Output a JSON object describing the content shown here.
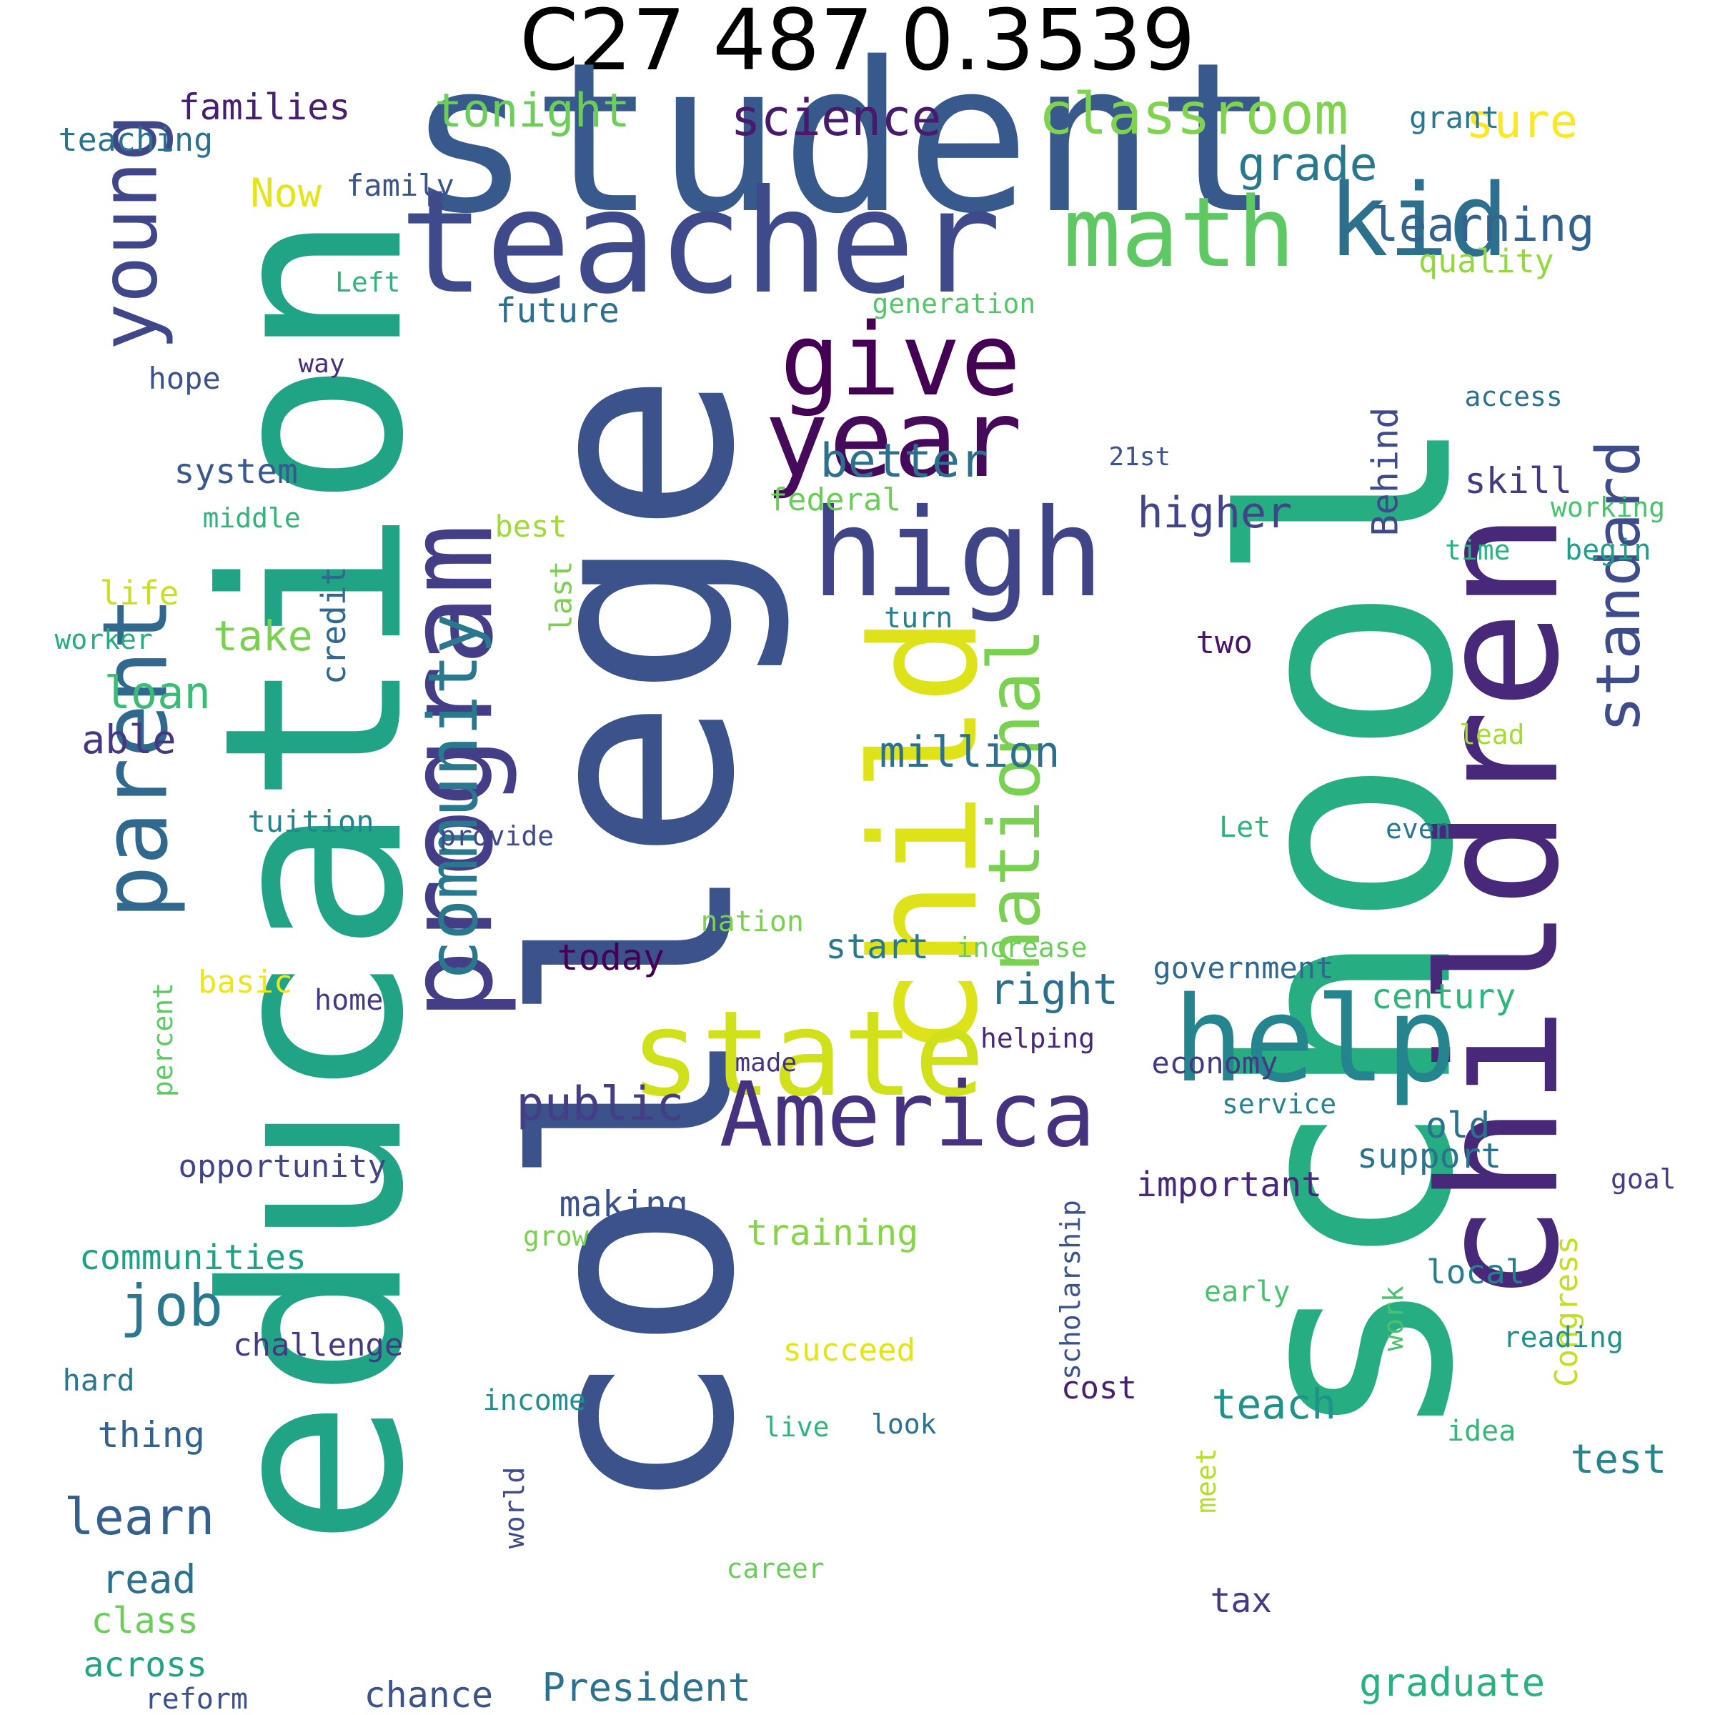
{
  "title": "C27 487 0.3539",
  "words": [
    {
      "text": "school",
      "color": "#26AD81"
    },
    {
      "text": "college",
      "color": "#3B528B"
    },
    {
      "text": "education",
      "color": "#21A386"
    },
    {
      "text": "student",
      "color": "#38598C"
    },
    {
      "text": "children",
      "color": "#482878"
    },
    {
      "text": "child",
      "color": "#DDE318"
    },
    {
      "text": "teacher",
      "color": "#3E4A89"
    },
    {
      "text": "program",
      "color": "#433E85"
    },
    {
      "text": "state",
      "color": "#D0E11C"
    },
    {
      "text": "America",
      "color": "#46327E"
    },
    {
      "text": "help",
      "color": "#25858E"
    },
    {
      "text": "high",
      "color": "#404588"
    },
    {
      "text": "year",
      "color": "#450B5A"
    },
    {
      "text": "give",
      "color": "#440154"
    },
    {
      "text": "kid",
      "color": "#2D708E"
    },
    {
      "text": "math",
      "color": "#5EC962"
    },
    {
      "text": "parent",
      "color": "#31688E"
    },
    {
      "text": "young",
      "color": "#3F4788"
    },
    {
      "text": "community",
      "color": "#2A788E"
    },
    {
      "text": "national",
      "color": "#7AD151"
    },
    {
      "text": "standard",
      "color": "#3E4C8A"
    },
    {
      "text": "classroom",
      "color": "#7FD34E"
    },
    {
      "text": "science",
      "color": "#481A6C"
    },
    {
      "text": "tonight",
      "color": "#6CCD5A"
    },
    {
      "text": "sure",
      "color": "#FDE725"
    },
    {
      "text": "grade",
      "color": "#2A788E"
    },
    {
      "text": "learning",
      "color": "#33638D"
    },
    {
      "text": "quality",
      "color": "#93D741"
    },
    {
      "text": "families",
      "color": "#481F70"
    },
    {
      "text": "teaching",
      "color": "#2C728E"
    },
    {
      "text": "Now",
      "color": "#E5E419"
    },
    {
      "text": "family",
      "color": "#3A548C"
    },
    {
      "text": "Left",
      "color": "#2FB47C"
    },
    {
      "text": "grant",
      "color": "#2A778E"
    },
    {
      "text": "future",
      "color": "#2C718E"
    },
    {
      "text": "generation",
      "color": "#54C568"
    },
    {
      "text": "hope",
      "color": "#3B528B"
    },
    {
      "text": "way",
      "color": "#472D7B"
    },
    {
      "text": "access",
      "color": "#2C728E"
    },
    {
      "text": "better",
      "color": "#2D708E"
    },
    {
      "text": "system",
      "color": "#38598C"
    },
    {
      "text": "21st",
      "color": "#3B528B"
    },
    {
      "text": "Behind",
      "color": "#3E4A89"
    },
    {
      "text": "higher",
      "color": "#414487"
    },
    {
      "text": "skill",
      "color": "#443A83"
    },
    {
      "text": "working",
      "color": "#4AC16D"
    },
    {
      "text": "middle",
      "color": "#2FB47C"
    },
    {
      "text": "federal",
      "color": "#6CCD5A"
    },
    {
      "text": "best",
      "color": "#A0DA39"
    },
    {
      "text": "time",
      "color": "#2BB07F"
    },
    {
      "text": "begin",
      "color": "#1F9E89"
    },
    {
      "text": "life",
      "color": "#C8E020"
    },
    {
      "text": "take",
      "color": "#7AD151"
    },
    {
      "text": "last",
      "color": "#7AD151"
    },
    {
      "text": "turn",
      "color": "#27808E"
    },
    {
      "text": "worker",
      "color": "#26AD81"
    },
    {
      "text": "credit",
      "color": "#31688E"
    },
    {
      "text": "two",
      "color": "#481467"
    },
    {
      "text": "loan",
      "color": "#3BBB75"
    },
    {
      "text": "able",
      "color": "#453781"
    },
    {
      "text": "million",
      "color": "#2D708E"
    },
    {
      "text": "lead",
      "color": "#A5DB36"
    },
    {
      "text": "tuition",
      "color": "#25848E"
    },
    {
      "text": "provide",
      "color": "#3E4A89"
    },
    {
      "text": "Let",
      "color": "#2EB37C"
    },
    {
      "text": "even",
      "color": "#2A788E"
    },
    {
      "text": "nation",
      "color": "#7AD151"
    },
    {
      "text": "start",
      "color": "#2A788E"
    },
    {
      "text": "increase",
      "color": "#6CCD5A"
    },
    {
      "text": "today",
      "color": "#440154"
    },
    {
      "text": "government",
      "color": "#31688E"
    },
    {
      "text": "basic",
      "color": "#EFE51C"
    },
    {
      "text": "right",
      "color": "#2D708E"
    },
    {
      "text": "century",
      "color": "#2FB47C"
    },
    {
      "text": "home",
      "color": "#443A83"
    },
    {
      "text": "percent",
      "color": "#5EC962"
    },
    {
      "text": "helping",
      "color": "#482878"
    },
    {
      "text": "made",
      "color": "#46327E"
    },
    {
      "text": "economy",
      "color": "#443983"
    },
    {
      "text": "public",
      "color": "#433E85"
    },
    {
      "text": "service",
      "color": "#26828E"
    },
    {
      "text": "old",
      "color": "#2D708E"
    },
    {
      "text": "goal",
      "color": "#433E85"
    },
    {
      "text": "opportunity",
      "color": "#414487"
    },
    {
      "text": "support",
      "color": "#2C728E"
    },
    {
      "text": "important",
      "color": "#482878"
    },
    {
      "text": "making",
      "color": "#3B528B"
    },
    {
      "text": "scholarship",
      "color": "#3B528B"
    },
    {
      "text": "communities",
      "color": "#1FA187"
    },
    {
      "text": "training",
      "color": "#86D549"
    },
    {
      "text": "grow",
      "color": "#7AD151"
    },
    {
      "text": "Congress",
      "color": "#C2DF23"
    },
    {
      "text": "local",
      "color": "#287D8E"
    },
    {
      "text": "early",
      "color": "#4AC16D"
    },
    {
      "text": "work",
      "color": "#4AC16D"
    },
    {
      "text": "job",
      "color": "#2A788E"
    },
    {
      "text": "challenge",
      "color": "#443A83"
    },
    {
      "text": "reading",
      "color": "#21918C"
    },
    {
      "text": "succeed",
      "color": "#E5E419"
    },
    {
      "text": "hard",
      "color": "#2A788E"
    },
    {
      "text": "cost",
      "color": "#481F70"
    },
    {
      "text": "income",
      "color": "#218F8D"
    },
    {
      "text": "teach",
      "color": "#21918C"
    },
    {
      "text": "thing",
      "color": "#33638D"
    },
    {
      "text": "live",
      "color": "#2FB47C"
    },
    {
      "text": "look",
      "color": "#2C728E"
    },
    {
      "text": "idea",
      "color": "#35B779"
    },
    {
      "text": "test",
      "color": "#25848E"
    },
    {
      "text": "world",
      "color": "#3E4A89"
    },
    {
      "text": "meet",
      "color": "#B5DE2B"
    },
    {
      "text": "learn",
      "color": "#355F8D"
    },
    {
      "text": "career",
      "color": "#6CCD5A"
    },
    {
      "text": "read",
      "color": "#2D708E"
    },
    {
      "text": "tax",
      "color": "#443A83"
    },
    {
      "text": "class",
      "color": "#6CCD5A"
    },
    {
      "text": "across",
      "color": "#21A386"
    },
    {
      "text": "graduate",
      "color": "#2BB07F"
    },
    {
      "text": "reform",
      "color": "#3B528B"
    },
    {
      "text": "chance",
      "color": "#3B528B"
    },
    {
      "text": "President",
      "color": "#2C728E"
    }
  ]
}
